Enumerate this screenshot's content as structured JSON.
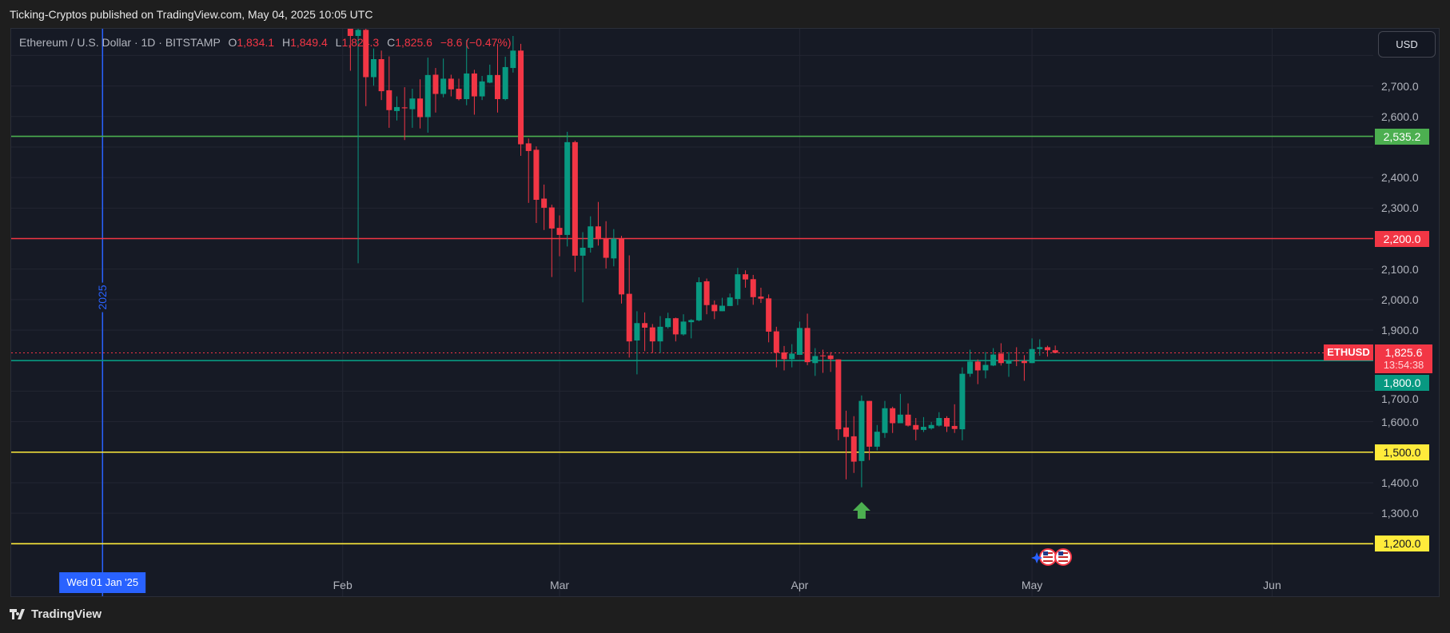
{
  "header": {
    "publisher_line": "Ticking-Cryptos published on TradingView.com, May 04, 2025 10:05 UTC"
  },
  "legend": {
    "symbol": "Ethereum / U.S. Dollar · 1D · BITSTAMP",
    "o_label": "O",
    "o": "1,834.1",
    "h_label": "H",
    "h": "1,849.4",
    "l_label": "L",
    "l": "1,824.3",
    "c_label": "C",
    "c": "1,825.6",
    "change": "−8.6 (−0.47%)"
  },
  "price_axis": {
    "currency": "USD",
    "ticks": [
      "2,700.0",
      "2,600.0",
      "2,400.0",
      "2,300.0",
      "2,100.0",
      "2,000.0",
      "1,900.0",
      "1,700.0",
      "1,600.0",
      "1,400.0",
      "1,300.0"
    ]
  },
  "levels": [
    {
      "price": 2535.2,
      "label": "2,535.2",
      "color": "#4caf50",
      "text_color": "#ffffff"
    },
    {
      "price": 2200.0,
      "label": "2,200.0",
      "color": "#f23645",
      "text_color": "#ffffff"
    },
    {
      "price": 1800.0,
      "label": "1,800.0",
      "color": "#089981",
      "text_color": "#ffffff"
    },
    {
      "price": 1500.0,
      "label": "1,500.0",
      "color": "#ffeb3b",
      "text_color": "#131722"
    },
    {
      "price": 1200.0,
      "label": "1,200.0",
      "color": "#ffeb3b",
      "text_color": "#131722"
    }
  ],
  "current": {
    "symbol": "ETHUSD",
    "price": 1825.6,
    "price_label": "1,825.6",
    "countdown": "13:54:38",
    "color": "#f23645"
  },
  "time_axis": {
    "labels": [
      {
        "date": "2025-02-01",
        "label": "Feb"
      },
      {
        "date": "2025-03-01",
        "label": "Mar"
      },
      {
        "date": "2025-04-01",
        "label": "Apr"
      },
      {
        "date": "2025-05-01",
        "label": "May"
      },
      {
        "date": "2025-06-01",
        "label": "Jun"
      }
    ]
  },
  "year_marker": {
    "date": "2025-01-01",
    "year": "2025",
    "date_label": "Wed 01 Jan '25",
    "color": "#2962ff"
  },
  "signal": {
    "date": "2025-04-09",
    "icon": "up-arrow",
    "color": "#4caf50"
  },
  "events": {
    "date": "2025-05-01",
    "icon": "us-flag"
  },
  "footer": {
    "brand": "TradingView"
  },
  "colors": {
    "up": "#089981",
    "down": "#f23645",
    "grid": "#232632",
    "background": "#161a25"
  },
  "chart_data": {
    "type": "candlestick",
    "title": "Ethereum / U.S. Dollar · 1D · BITSTAMP",
    "ylim": [
      1130,
      2890
    ],
    "xlim": [
      "2024-12-27",
      "2025-06-13"
    ],
    "grid": true,
    "candles": [
      {
        "d": "2025-02-02",
        "o": 2990,
        "h": 3050,
        "l": 2750,
        "c": 2864
      },
      {
        "d": "2025-02-03",
        "o": 2864,
        "h": 2900,
        "l": 2119,
        "c": 2884
      },
      {
        "d": "2025-02-04",
        "o": 2884,
        "h": 2900,
        "l": 2634,
        "c": 2729
      },
      {
        "d": "2025-02-05",
        "o": 2729,
        "h": 2823,
        "l": 2701,
        "c": 2788
      },
      {
        "d": "2025-02-06",
        "o": 2788,
        "h": 2816,
        "l": 2654,
        "c": 2683
      },
      {
        "d": "2025-02-07",
        "o": 2686,
        "h": 2797,
        "l": 2563,
        "c": 2621
      },
      {
        "d": "2025-02-08",
        "o": 2618,
        "h": 2666,
        "l": 2587,
        "c": 2631
      },
      {
        "d": "2025-02-09",
        "o": 2630,
        "h": 2696,
        "l": 2523,
        "c": 2627
      },
      {
        "d": "2025-02-10",
        "o": 2624,
        "h": 2691,
        "l": 2563,
        "c": 2659
      },
      {
        "d": "2025-02-11",
        "o": 2659,
        "h": 2722,
        "l": 2561,
        "c": 2598
      },
      {
        "d": "2025-02-12",
        "o": 2598,
        "h": 2793,
        "l": 2547,
        "c": 2736
      },
      {
        "d": "2025-02-13",
        "o": 2737,
        "h": 2759,
        "l": 2613,
        "c": 2674
      },
      {
        "d": "2025-02-14",
        "o": 2674,
        "h": 2790,
        "l": 2663,
        "c": 2724
      },
      {
        "d": "2025-02-15",
        "o": 2724,
        "h": 2737,
        "l": 2666,
        "c": 2689
      },
      {
        "d": "2025-02-16",
        "o": 2691,
        "h": 2724,
        "l": 2653,
        "c": 2657
      },
      {
        "d": "2025-02-17",
        "o": 2657,
        "h": 2851,
        "l": 2637,
        "c": 2741
      },
      {
        "d": "2025-02-18",
        "o": 2741,
        "h": 2753,
        "l": 2606,
        "c": 2666
      },
      {
        "d": "2025-02-19",
        "o": 2666,
        "h": 2733,
        "l": 2654,
        "c": 2715
      },
      {
        "d": "2025-02-20",
        "o": 2711,
        "h": 2770,
        "l": 2709,
        "c": 2736
      },
      {
        "d": "2025-02-21",
        "o": 2736,
        "h": 2838,
        "l": 2613,
        "c": 2657
      },
      {
        "d": "2025-02-22",
        "o": 2657,
        "h": 2796,
        "l": 2653,
        "c": 2762
      },
      {
        "d": "2025-02-23",
        "o": 2759,
        "h": 2864,
        "l": 2744,
        "c": 2816
      },
      {
        "d": "2025-02-24",
        "o": 2816,
        "h": 2838,
        "l": 2471,
        "c": 2509
      },
      {
        "d": "2025-02-25",
        "o": 2512,
        "h": 2528,
        "l": 2317,
        "c": 2487
      },
      {
        "d": "2025-02-26",
        "o": 2491,
        "h": 2502,
        "l": 2251,
        "c": 2327
      },
      {
        "d": "2025-02-27",
        "o": 2331,
        "h": 2377,
        "l": 2228,
        "c": 2301
      },
      {
        "d": "2025-02-28",
        "o": 2302,
        "h": 2311,
        "l": 2074,
        "c": 2233
      },
      {
        "d": "2025-03-01",
        "o": 2235,
        "h": 2276,
        "l": 2142,
        "c": 2212
      },
      {
        "d": "2025-03-02",
        "o": 2212,
        "h": 2550,
        "l": 2174,
        "c": 2516
      },
      {
        "d": "2025-03-03",
        "o": 2516,
        "h": 2521,
        "l": 2091,
        "c": 2144
      },
      {
        "d": "2025-03-04",
        "o": 2144,
        "h": 2221,
        "l": 1991,
        "c": 2170
      },
      {
        "d": "2025-03-05",
        "o": 2170,
        "h": 2273,
        "l": 2154,
        "c": 2240
      },
      {
        "d": "2025-03-06",
        "o": 2240,
        "h": 2320,
        "l": 2177,
        "c": 2198
      },
      {
        "d": "2025-03-07",
        "o": 2200,
        "h": 2257,
        "l": 2102,
        "c": 2137
      },
      {
        "d": "2025-03-08",
        "o": 2135,
        "h": 2231,
        "l": 2109,
        "c": 2200
      },
      {
        "d": "2025-03-09",
        "o": 2200,
        "h": 2209,
        "l": 1987,
        "c": 2017
      },
      {
        "d": "2025-03-10",
        "o": 2019,
        "h": 2145,
        "l": 1810,
        "c": 1863
      },
      {
        "d": "2025-03-11",
        "o": 1866,
        "h": 1962,
        "l": 1755,
        "c": 1923
      },
      {
        "d": "2025-03-12",
        "o": 1923,
        "h": 1958,
        "l": 1831,
        "c": 1908
      },
      {
        "d": "2025-03-13",
        "o": 1909,
        "h": 1920,
        "l": 1825,
        "c": 1863
      },
      {
        "d": "2025-03-14",
        "o": 1863,
        "h": 1946,
        "l": 1825,
        "c": 1911
      },
      {
        "d": "2025-03-15",
        "o": 1910,
        "h": 1957,
        "l": 1905,
        "c": 1939
      },
      {
        "d": "2025-03-16",
        "o": 1939,
        "h": 1941,
        "l": 1863,
        "c": 1886
      },
      {
        "d": "2025-03-17",
        "o": 1886,
        "h": 1952,
        "l": 1882,
        "c": 1928
      },
      {
        "d": "2025-03-18",
        "o": 1926,
        "h": 1936,
        "l": 1873,
        "c": 1933
      },
      {
        "d": "2025-03-19",
        "o": 1932,
        "h": 2073,
        "l": 1929,
        "c": 2057
      },
      {
        "d": "2025-03-20",
        "o": 2060,
        "h": 2069,
        "l": 1952,
        "c": 1982
      },
      {
        "d": "2025-03-21",
        "o": 1983,
        "h": 1997,
        "l": 1936,
        "c": 1962
      },
      {
        "d": "2025-03-22",
        "o": 1962,
        "h": 2006,
        "l": 1962,
        "c": 1980
      },
      {
        "d": "2025-03-23",
        "o": 1979,
        "h": 2020,
        "l": 1979,
        "c": 2007
      },
      {
        "d": "2025-03-24",
        "o": 2002,
        "h": 2104,
        "l": 1982,
        "c": 2083
      },
      {
        "d": "2025-03-25",
        "o": 2083,
        "h": 2096,
        "l": 2039,
        "c": 2066
      },
      {
        "d": "2025-03-26",
        "o": 2067,
        "h": 2081,
        "l": 1983,
        "c": 2008
      },
      {
        "d": "2025-03-27",
        "o": 2010,
        "h": 2039,
        "l": 1989,
        "c": 2003
      },
      {
        "d": "2025-03-28",
        "o": 2004,
        "h": 2017,
        "l": 1860,
        "c": 1895
      },
      {
        "d": "2025-03-29",
        "o": 1896,
        "h": 1911,
        "l": 1778,
        "c": 1826
      },
      {
        "d": "2025-03-30",
        "o": 1827,
        "h": 1848,
        "l": 1768,
        "c": 1805
      },
      {
        "d": "2025-03-31",
        "o": 1805,
        "h": 1854,
        "l": 1778,
        "c": 1823
      },
      {
        "d": "2025-04-01",
        "o": 1819,
        "h": 1928,
        "l": 1819,
        "c": 1907
      },
      {
        "d": "2025-04-02",
        "o": 1907,
        "h": 1954,
        "l": 1785,
        "c": 1795
      },
      {
        "d": "2025-04-03",
        "o": 1792,
        "h": 1841,
        "l": 1750,
        "c": 1815
      },
      {
        "d": "2025-04-04",
        "o": 1817,
        "h": 1836,
        "l": 1760,
        "c": 1815
      },
      {
        "d": "2025-04-05",
        "o": 1817,
        "h": 1828,
        "l": 1763,
        "c": 1805
      },
      {
        "d": "2025-04-06",
        "o": 1804,
        "h": 1804,
        "l": 1539,
        "c": 1575
      },
      {
        "d": "2025-04-07",
        "o": 1581,
        "h": 1636,
        "l": 1411,
        "c": 1550
      },
      {
        "d": "2025-04-08",
        "o": 1552,
        "h": 1618,
        "l": 1432,
        "c": 1469
      },
      {
        "d": "2025-04-09",
        "o": 1471,
        "h": 1686,
        "l": 1385,
        "c": 1668
      },
      {
        "d": "2025-04-10",
        "o": 1668,
        "h": 1668,
        "l": 1474,
        "c": 1518
      },
      {
        "d": "2025-04-11",
        "o": 1518,
        "h": 1589,
        "l": 1506,
        "c": 1567
      },
      {
        "d": "2025-04-12",
        "o": 1563,
        "h": 1668,
        "l": 1547,
        "c": 1644
      },
      {
        "d": "2025-04-13",
        "o": 1644,
        "h": 1649,
        "l": 1563,
        "c": 1595
      },
      {
        "d": "2025-04-14",
        "o": 1595,
        "h": 1691,
        "l": 1595,
        "c": 1623
      },
      {
        "d": "2025-04-15",
        "o": 1623,
        "h": 1660,
        "l": 1584,
        "c": 1587
      },
      {
        "d": "2025-04-16",
        "o": 1589,
        "h": 1612,
        "l": 1539,
        "c": 1574
      },
      {
        "d": "2025-04-17",
        "o": 1573,
        "h": 1615,
        "l": 1566,
        "c": 1583
      },
      {
        "d": "2025-04-18",
        "o": 1578,
        "h": 1599,
        "l": 1574,
        "c": 1589
      },
      {
        "d": "2025-04-19",
        "o": 1587,
        "h": 1631,
        "l": 1584,
        "c": 1612
      },
      {
        "d": "2025-04-20",
        "o": 1612,
        "h": 1618,
        "l": 1566,
        "c": 1584
      },
      {
        "d": "2025-04-21",
        "o": 1586,
        "h": 1657,
        "l": 1563,
        "c": 1576
      },
      {
        "d": "2025-04-22",
        "o": 1575,
        "h": 1778,
        "l": 1539,
        "c": 1757
      },
      {
        "d": "2025-04-23",
        "o": 1757,
        "h": 1836,
        "l": 1747,
        "c": 1797
      },
      {
        "d": "2025-04-24",
        "o": 1797,
        "h": 1804,
        "l": 1723,
        "c": 1768
      },
      {
        "d": "2025-04-25",
        "o": 1768,
        "h": 1828,
        "l": 1742,
        "c": 1786
      },
      {
        "d": "2025-04-26",
        "o": 1784,
        "h": 1841,
        "l": 1782,
        "c": 1820
      },
      {
        "d": "2025-04-27",
        "o": 1823,
        "h": 1857,
        "l": 1784,
        "c": 1792
      },
      {
        "d": "2025-04-28",
        "o": 1790,
        "h": 1828,
        "l": 1747,
        "c": 1799
      },
      {
        "d": "2025-04-29",
        "o": 1801,
        "h": 1844,
        "l": 1782,
        "c": 1799
      },
      {
        "d": "2025-04-30",
        "o": 1799,
        "h": 1818,
        "l": 1734,
        "c": 1792
      },
      {
        "d": "2025-05-01",
        "o": 1792,
        "h": 1873,
        "l": 1792,
        "c": 1838
      },
      {
        "d": "2025-05-02",
        "o": 1838,
        "h": 1870,
        "l": 1816,
        "c": 1844
      },
      {
        "d": "2025-05-03",
        "o": 1844,
        "h": 1849,
        "l": 1813,
        "c": 1834
      },
      {
        "d": "2025-05-04",
        "o": 1834.1,
        "h": 1849.4,
        "l": 1824.3,
        "c": 1825.6
      }
    ]
  }
}
